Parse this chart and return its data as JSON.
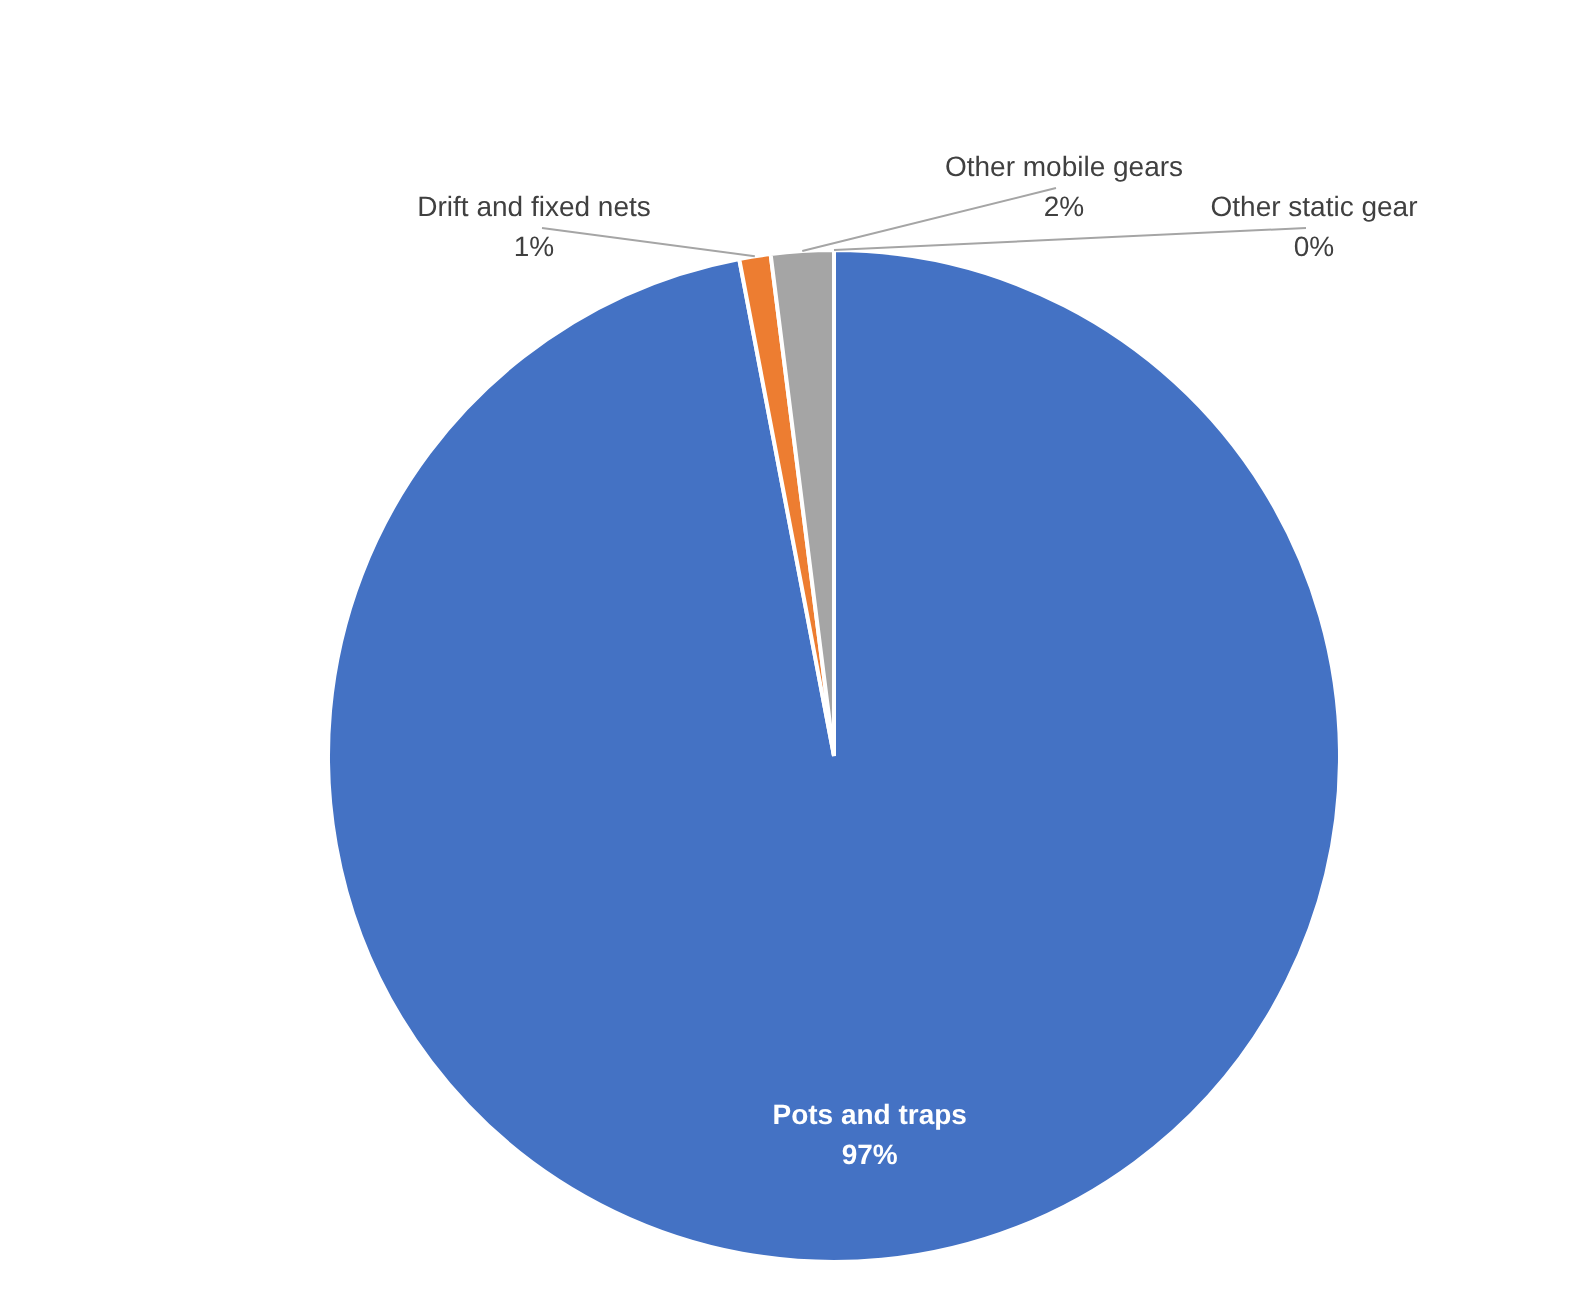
{
  "chart_data": {
    "type": "pie",
    "categories": [
      "Pots and traps",
      "Drift and fixed nets",
      "Other mobile gears",
      "Other static gear"
    ],
    "values": [
      97,
      1,
      2,
      0
    ],
    "value_labels": [
      "97%",
      "1%",
      "2%",
      "0%"
    ],
    "colors": [
      "#4472c4",
      "#ed7d31",
      "#a5a5a5",
      "#ffc000"
    ]
  }
}
